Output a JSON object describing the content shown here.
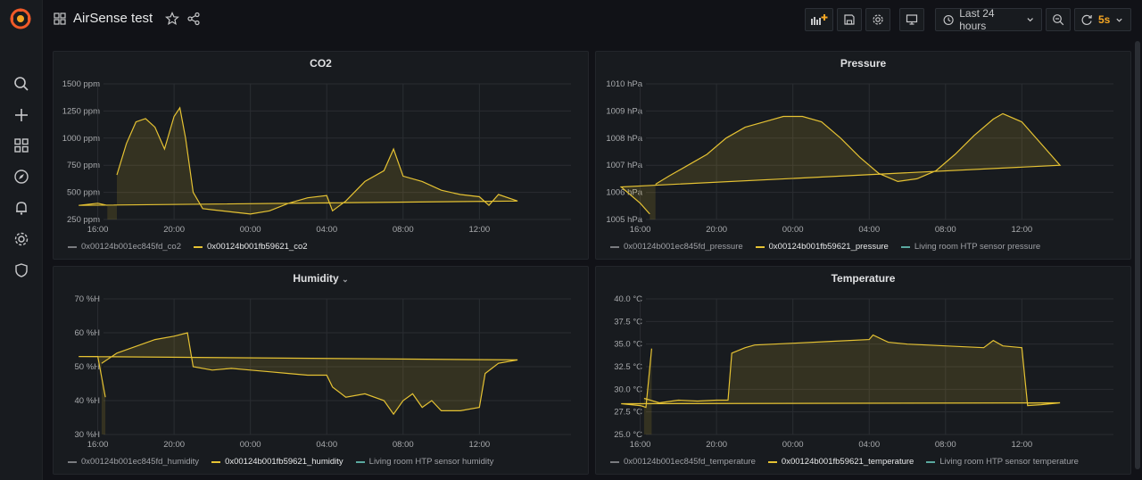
{
  "dashboard": {
    "title": "AirSense test"
  },
  "toolbar": {
    "time_range": "Last 24 hours",
    "refresh": "5s"
  },
  "colors": {
    "yellow": "#e5c233",
    "teal": "#5aa9a0",
    "grey": "#7a7c80",
    "bg": "#111217",
    "panel": "#181b1f"
  },
  "panels": [
    {
      "title": "CO2",
      "yticks": [
        "1500 ppm",
        "1250 ppm",
        "1000 ppm",
        "750 ppm",
        "500 ppm",
        "250 ppm"
      ],
      "xticks": [
        "20:00",
        "00:00",
        "04:00",
        "08:00",
        "12:00",
        "16:00"
      ],
      "legend": [
        "0x00124b001ec845fd_co2",
        "0x00124b001fb59621_co2"
      ]
    },
    {
      "title": "Pressure",
      "yticks": [
        "1010 hPa",
        "1009 hPa",
        "1008 hPa",
        "1007 hPa",
        "1006 hPa",
        "1005 hPa"
      ],
      "xticks": [
        "20:00",
        "00:00",
        "04:00",
        "08:00",
        "12:00",
        "16:00"
      ],
      "legend": [
        "0x00124b001ec845fd_pressure",
        "0x00124b001fb59621_pressure",
        "Living room HTP sensor pressure"
      ]
    },
    {
      "title": "Humidity",
      "yticks": [
        "70 %H",
        "60 %H",
        "50 %H",
        "40 %H",
        "30 %H"
      ],
      "xticks": [
        "20:00",
        "00:00",
        "04:00",
        "08:00",
        "12:00",
        "16:00"
      ],
      "legend": [
        "0x00124b001ec845fd_humidity",
        "0x00124b001fb59621_humidity",
        "Living room HTP sensor humidity"
      ]
    },
    {
      "title": "Temperature",
      "yticks": [
        "40.0 °C",
        "37.5 °C",
        "35.0 °C",
        "32.5 °C",
        "30.0 °C",
        "27.5 °C",
        "25.0 °C"
      ],
      "xticks": [
        "20:00",
        "00:00",
        "04:00",
        "08:00",
        "12:00",
        "16:00"
      ],
      "legend": [
        "0x00124b001ec845fd_temperature",
        "0x00124b001fb59621_temperature",
        "Living room HTP sensor temperature"
      ]
    }
  ],
  "chart_data": [
    {
      "type": "area",
      "title": "CO2",
      "x_hours": [
        17,
        17.5,
        18,
        18.5,
        19,
        19.5,
        20,
        20.3,
        20.6,
        21,
        21.5,
        22,
        23,
        0,
        1,
        2,
        3,
        4,
        4.3,
        5,
        6,
        7,
        7.5,
        8,
        9,
        10,
        11,
        12,
        12.5,
        13,
        14,
        15,
        16,
        16.5
      ],
      "series": [
        {
          "name": "0x00124b001fb59621_co2",
          "values": [
            660,
            950,
            1150,
            1180,
            1100,
            900,
            1200,
            1280,
            1000,
            500,
            350,
            340,
            320,
            300,
            330,
            400,
            450,
            470,
            330,
            420,
            600,
            700,
            900,
            650,
            600,
            520,
            480,
            460,
            380,
            480,
            420,
            380,
            400,
            380
          ]
        }
      ],
      "ylim": [
        250,
        1500
      ]
    },
    {
      "type": "area",
      "title": "Pressure",
      "x_hours": [
        16.8,
        17.5,
        18.5,
        19.5,
        20.5,
        21.5,
        22.5,
        23.5,
        0.5,
        1.5,
        2.5,
        3.5,
        4.5,
        5.5,
        6.5,
        7.5,
        8.5,
        9.5,
        10.5,
        11,
        12,
        13,
        14,
        15,
        16,
        16.5
      ],
      "series": [
        {
          "name": "0x00124b001fb59621_pressure",
          "values": [
            1006.3,
            1006.6,
            1007.0,
            1007.4,
            1008.0,
            1008.4,
            1008.6,
            1008.8,
            1008.8,
            1008.6,
            1008.0,
            1007.3,
            1006.7,
            1006.4,
            1006.5,
            1006.8,
            1007.4,
            1008.1,
            1008.7,
            1008.9,
            1008.6,
            1007.8,
            1007.0,
            1006.2,
            1005.6,
            1005.2
          ]
        }
      ],
      "ylim": [
        1005,
        1010
      ]
    },
    {
      "type": "area",
      "title": "Humidity",
      "x_hours": [
        16.2,
        17,
        18,
        19,
        20,
        20.7,
        21,
        22,
        23,
        0,
        1,
        2,
        3,
        4,
        4.3,
        5,
        6,
        7,
        7.5,
        8,
        8.5,
        9,
        9.5,
        10,
        11,
        12,
        12.3,
        13,
        14,
        15,
        16,
        16.4
      ],
      "series": [
        {
          "name": "0x00124b001fb59621_humidity",
          "values": [
            51,
            54,
            56,
            58,
            59,
            60,
            50,
            49,
            49.5,
            49,
            48.5,
            48,
            47.5,
            47.5,
            44,
            41,
            42,
            40,
            36,
            40,
            42,
            38,
            40,
            37,
            37,
            38,
            48,
            51,
            52,
            53,
            53,
            41
          ]
        }
      ],
      "ylim": [
        30,
        70
      ]
    },
    {
      "type": "area",
      "title": "Temperature",
      "x_hours": [
        16.2,
        17,
        18,
        19,
        20,
        20.6,
        20.8,
        21.5,
        22,
        0,
        2,
        4,
        4.2,
        5,
        6,
        7,
        8,
        9,
        10,
        10.5,
        11,
        12,
        12.3,
        13,
        14,
        15,
        16,
        16.3,
        16.6
      ],
      "series": [
        {
          "name": "0x00124b001fb59621_temperature",
          "values": [
            29,
            28.5,
            28.8,
            28.7,
            28.8,
            28.8,
            34,
            34.6,
            34.9,
            35.1,
            35.3,
            35.5,
            36.0,
            35.2,
            35.0,
            34.9,
            34.8,
            34.7,
            34.6,
            35.4,
            34.8,
            34.6,
            28.2,
            28.3,
            28.5,
            28.4,
            28.2,
            28.0,
            34.5
          ]
        }
      ],
      "ylim": [
        25,
        40
      ]
    }
  ]
}
